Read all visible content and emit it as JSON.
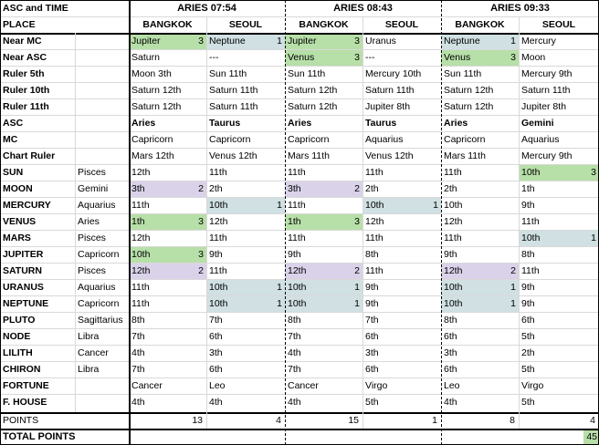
{
  "header": {
    "corner": "ASC and TIME",
    "place_label": "PLACE",
    "groups": [
      {
        "time": "ARIES 07:54",
        "places": [
          "BANGKOK",
          "SEOUL"
        ]
      },
      {
        "time": "ARIES 08:43",
        "places": [
          "BANGKOK",
          "SEOUL"
        ]
      },
      {
        "time": "ARIES 09:33",
        "places": [
          "BANGKOK",
          "SEOUL"
        ]
      }
    ]
  },
  "rows": [
    {
      "label": "Near MC",
      "sign": "",
      "cells": [
        {
          "t": "Jupiter",
          "n": "3",
          "c": "green"
        },
        {
          "t": "Neptune",
          "n": "1",
          "c": "blue"
        },
        {
          "t": "Jupiter",
          "n": "3",
          "c": "green"
        },
        {
          "t": "Uranus",
          "n": "",
          "c": ""
        },
        {
          "t": "Neptune",
          "n": "1",
          "c": "blue"
        },
        {
          "t": "Mercury",
          "n": "",
          "c": ""
        }
      ]
    },
    {
      "label": "Near ASC",
      "sign": "",
      "cells": [
        {
          "t": "Saturn",
          "n": "",
          "c": ""
        },
        {
          "t": "---",
          "n": "",
          "c": ""
        },
        {
          "t": "Venus",
          "n": "3",
          "c": "green"
        },
        {
          "t": "---",
          "n": "",
          "c": ""
        },
        {
          "t": "Venus",
          "n": "3",
          "c": "green"
        },
        {
          "t": "Moon",
          "n": "",
          "c": ""
        }
      ]
    },
    {
      "label": "Ruler 5th",
      "sign": "",
      "cells": [
        {
          "t": "Moon 3th",
          "n": "",
          "c": ""
        },
        {
          "t": "Sun 11th",
          "n": "",
          "c": ""
        },
        {
          "t": "Sun 11th",
          "n": "",
          "c": ""
        },
        {
          "t": "Mercury 10th",
          "n": "",
          "c": ""
        },
        {
          "t": "Sun 11th",
          "n": "",
          "c": ""
        },
        {
          "t": "Mercury 9th",
          "n": "",
          "c": ""
        }
      ]
    },
    {
      "label": "Ruler 10th",
      "sign": "",
      "cells": [
        {
          "t": "Saturn 12th",
          "n": "",
          "c": ""
        },
        {
          "t": "Saturn 11th",
          "n": "",
          "c": ""
        },
        {
          "t": "Saturn 12th",
          "n": "",
          "c": ""
        },
        {
          "t": "Saturn 11th",
          "n": "",
          "c": ""
        },
        {
          "t": "Saturn 12th",
          "n": "",
          "c": ""
        },
        {
          "t": "Saturn 11th",
          "n": "",
          "c": ""
        }
      ]
    },
    {
      "label": "Ruler 11th",
      "sign": "",
      "cells": [
        {
          "t": "Saturn 12th",
          "n": "",
          "c": ""
        },
        {
          "t": "Saturn 11th",
          "n": "",
          "c": ""
        },
        {
          "t": "Saturn 12th",
          "n": "",
          "c": ""
        },
        {
          "t": "Jupiter 8th",
          "n": "",
          "c": ""
        },
        {
          "t": "Saturn 12th",
          "n": "",
          "c": ""
        },
        {
          "t": "Jupiter 8th",
          "n": "",
          "c": ""
        }
      ]
    },
    {
      "label": "ASC",
      "sign": "",
      "bold": true,
      "cells": [
        {
          "t": "Aries",
          "n": "",
          "c": ""
        },
        {
          "t": "Taurus",
          "n": "",
          "c": ""
        },
        {
          "t": "Aries",
          "n": "",
          "c": ""
        },
        {
          "t": "Taurus",
          "n": "",
          "c": ""
        },
        {
          "t": "Aries",
          "n": "",
          "c": ""
        },
        {
          "t": "Gemini",
          "n": "",
          "c": ""
        }
      ]
    },
    {
      "label": "MC",
      "sign": "",
      "cells": [
        {
          "t": "Capricorn",
          "n": "",
          "c": ""
        },
        {
          "t": "Capricorn",
          "n": "",
          "c": ""
        },
        {
          "t": "Capricorn",
          "n": "",
          "c": ""
        },
        {
          "t": "Aquarius",
          "n": "",
          "c": ""
        },
        {
          "t": "Capricorn",
          "n": "",
          "c": ""
        },
        {
          "t": "Aquarius",
          "n": "",
          "c": ""
        }
      ]
    },
    {
      "label": "Chart Ruler",
      "sign": "",
      "cells": [
        {
          "t": "Mars 12th",
          "n": "",
          "c": ""
        },
        {
          "t": "Venus 12th",
          "n": "",
          "c": ""
        },
        {
          "t": "Mars 11th",
          "n": "",
          "c": ""
        },
        {
          "t": "Venus 12th",
          "n": "",
          "c": ""
        },
        {
          "t": "Mars 11th",
          "n": "",
          "c": ""
        },
        {
          "t": "Mercury 9th",
          "n": "",
          "c": ""
        }
      ]
    },
    {
      "label": "SUN",
      "sign": "Pisces",
      "cells": [
        {
          "t": "12th",
          "n": "",
          "c": ""
        },
        {
          "t": "11th",
          "n": "",
          "c": ""
        },
        {
          "t": "11th",
          "n": "",
          "c": ""
        },
        {
          "t": "11th",
          "n": "",
          "c": ""
        },
        {
          "t": "11th",
          "n": "",
          "c": ""
        },
        {
          "t": "10th",
          "n": "3",
          "c": "green"
        }
      ]
    },
    {
      "label": "MOON",
      "sign": "Gemini",
      "cells": [
        {
          "t": "3th",
          "n": "2",
          "c": "purple"
        },
        {
          "t": "2th",
          "n": "",
          "c": ""
        },
        {
          "t": "3th",
          "n": "2",
          "c": "purple"
        },
        {
          "t": "2th",
          "n": "",
          "c": ""
        },
        {
          "t": "2th",
          "n": "",
          "c": ""
        },
        {
          "t": "1th",
          "n": "",
          "c": ""
        }
      ]
    },
    {
      "label": "MERCURY",
      "sign": "Aquarius",
      "cells": [
        {
          "t": "11th",
          "n": "",
          "c": ""
        },
        {
          "t": "10th",
          "n": "1",
          "c": "blue"
        },
        {
          "t": "11th",
          "n": "",
          "c": ""
        },
        {
          "t": "10th",
          "n": "1",
          "c": "blue"
        },
        {
          "t": "10th",
          "n": "",
          "c": ""
        },
        {
          "t": "9th",
          "n": "",
          "c": ""
        }
      ]
    },
    {
      "label": "VENUS",
      "sign": "Aries",
      "cells": [
        {
          "t": "1th",
          "n": "3",
          "c": "green"
        },
        {
          "t": "12th",
          "n": "",
          "c": ""
        },
        {
          "t": "1th",
          "n": "3",
          "c": "green"
        },
        {
          "t": "12th",
          "n": "",
          "c": ""
        },
        {
          "t": "12th",
          "n": "",
          "c": ""
        },
        {
          "t": "11th",
          "n": "",
          "c": ""
        }
      ]
    },
    {
      "label": "MARS",
      "sign": "Pisces",
      "cells": [
        {
          "t": "12th",
          "n": "",
          "c": ""
        },
        {
          "t": "11th",
          "n": "",
          "c": ""
        },
        {
          "t": "11th",
          "n": "",
          "c": ""
        },
        {
          "t": "11th",
          "n": "",
          "c": ""
        },
        {
          "t": "11th",
          "n": "",
          "c": ""
        },
        {
          "t": "10th",
          "n": "1",
          "c": "blue"
        }
      ]
    },
    {
      "label": "JUPITER",
      "sign": "Capricorn",
      "cells": [
        {
          "t": "10th",
          "n": "3",
          "c": "green"
        },
        {
          "t": "9th",
          "n": "",
          "c": ""
        },
        {
          "t": "9th",
          "n": "",
          "c": ""
        },
        {
          "t": "8th",
          "n": "",
          "c": ""
        },
        {
          "t": "9th",
          "n": "",
          "c": ""
        },
        {
          "t": "8th",
          "n": "",
          "c": ""
        }
      ]
    },
    {
      "label": "SATURN",
      "sign": "Pisces",
      "cells": [
        {
          "t": "12th",
          "n": "2",
          "c": "purple"
        },
        {
          "t": "11th",
          "n": "",
          "c": ""
        },
        {
          "t": "12th",
          "n": "2",
          "c": "purple"
        },
        {
          "t": "11th",
          "n": "",
          "c": ""
        },
        {
          "t": "12th",
          "n": "2",
          "c": "purple"
        },
        {
          "t": "11th",
          "n": "",
          "c": ""
        }
      ]
    },
    {
      "label": "URANUS",
      "sign": "Aquarius",
      "cells": [
        {
          "t": "11th",
          "n": "",
          "c": ""
        },
        {
          "t": "10th",
          "n": "1",
          "c": "blue"
        },
        {
          "t": "10th",
          "n": "1",
          "c": "blue"
        },
        {
          "t": "9th",
          "n": "",
          "c": ""
        },
        {
          "t": "10th",
          "n": "1",
          "c": "blue"
        },
        {
          "t": "9th",
          "n": "",
          "c": ""
        }
      ]
    },
    {
      "label": "NEPTUNE",
      "sign": "Capricorn",
      "cells": [
        {
          "t": "11th",
          "n": "",
          "c": ""
        },
        {
          "t": "10th",
          "n": "1",
          "c": "blue"
        },
        {
          "t": "10th",
          "n": "1",
          "c": "blue"
        },
        {
          "t": "9th",
          "n": "",
          "c": ""
        },
        {
          "t": "10th",
          "n": "1",
          "c": "blue"
        },
        {
          "t": "9th",
          "n": "",
          "c": ""
        }
      ]
    },
    {
      "label": "PLUTO",
      "sign": "Sagittarius",
      "cells": [
        {
          "t": "8th",
          "n": "",
          "c": ""
        },
        {
          "t": "7th",
          "n": "",
          "c": ""
        },
        {
          "t": "8th",
          "n": "",
          "c": ""
        },
        {
          "t": "7th",
          "n": "",
          "c": ""
        },
        {
          "t": "8th",
          "n": "",
          "c": ""
        },
        {
          "t": "6th",
          "n": "",
          "c": ""
        }
      ]
    },
    {
      "label": "NODE",
      "sign": "Libra",
      "cells": [
        {
          "t": "7th",
          "n": "",
          "c": ""
        },
        {
          "t": "6th",
          "n": "",
          "c": ""
        },
        {
          "t": "7th",
          "n": "",
          "c": ""
        },
        {
          "t": "6th",
          "n": "",
          "c": ""
        },
        {
          "t": "6th",
          "n": "",
          "c": ""
        },
        {
          "t": "5th",
          "n": "",
          "c": ""
        }
      ]
    },
    {
      "label": "LILITH",
      "sign": "Cancer",
      "cells": [
        {
          "t": "4th",
          "n": "",
          "c": ""
        },
        {
          "t": "3th",
          "n": "",
          "c": ""
        },
        {
          "t": "4th",
          "n": "",
          "c": ""
        },
        {
          "t": "3th",
          "n": "",
          "c": ""
        },
        {
          "t": "3th",
          "n": "",
          "c": ""
        },
        {
          "t": "2th",
          "n": "",
          "c": ""
        }
      ]
    },
    {
      "label": "CHIRON",
      "sign": "Libra",
      "cells": [
        {
          "t": "7th",
          "n": "",
          "c": ""
        },
        {
          "t": "6th",
          "n": "",
          "c": ""
        },
        {
          "t": "7th",
          "n": "",
          "c": ""
        },
        {
          "t": "6th",
          "n": "",
          "c": ""
        },
        {
          "t": "6th",
          "n": "",
          "c": ""
        },
        {
          "t": "5th",
          "n": "",
          "c": ""
        }
      ]
    },
    {
      "label": "FORTUNE",
      "sign": "",
      "cells": [
        {
          "t": "Cancer",
          "n": "",
          "c": ""
        },
        {
          "t": "Leo",
          "n": "",
          "c": ""
        },
        {
          "t": "Cancer",
          "n": "",
          "c": ""
        },
        {
          "t": "Virgo",
          "n": "",
          "c": ""
        },
        {
          "t": "Leo",
          "n": "",
          "c": ""
        },
        {
          "t": "Virgo",
          "n": "",
          "c": ""
        }
      ]
    },
    {
      "label": "F. HOUSE",
      "sign": "",
      "cells": [
        {
          "t": "4th",
          "n": "",
          "c": ""
        },
        {
          "t": "4th",
          "n": "",
          "c": ""
        },
        {
          "t": "4th",
          "n": "",
          "c": ""
        },
        {
          "t": "5th",
          "n": "",
          "c": ""
        },
        {
          "t": "4th",
          "n": "",
          "c": ""
        },
        {
          "t": "5th",
          "n": "",
          "c": ""
        }
      ]
    }
  ],
  "points": {
    "label": "POINTS",
    "values": [
      "13",
      "4",
      "15",
      "1",
      "8",
      "4"
    ]
  },
  "total": {
    "label": "TOTAL POINTS",
    "value": "45"
  }
}
